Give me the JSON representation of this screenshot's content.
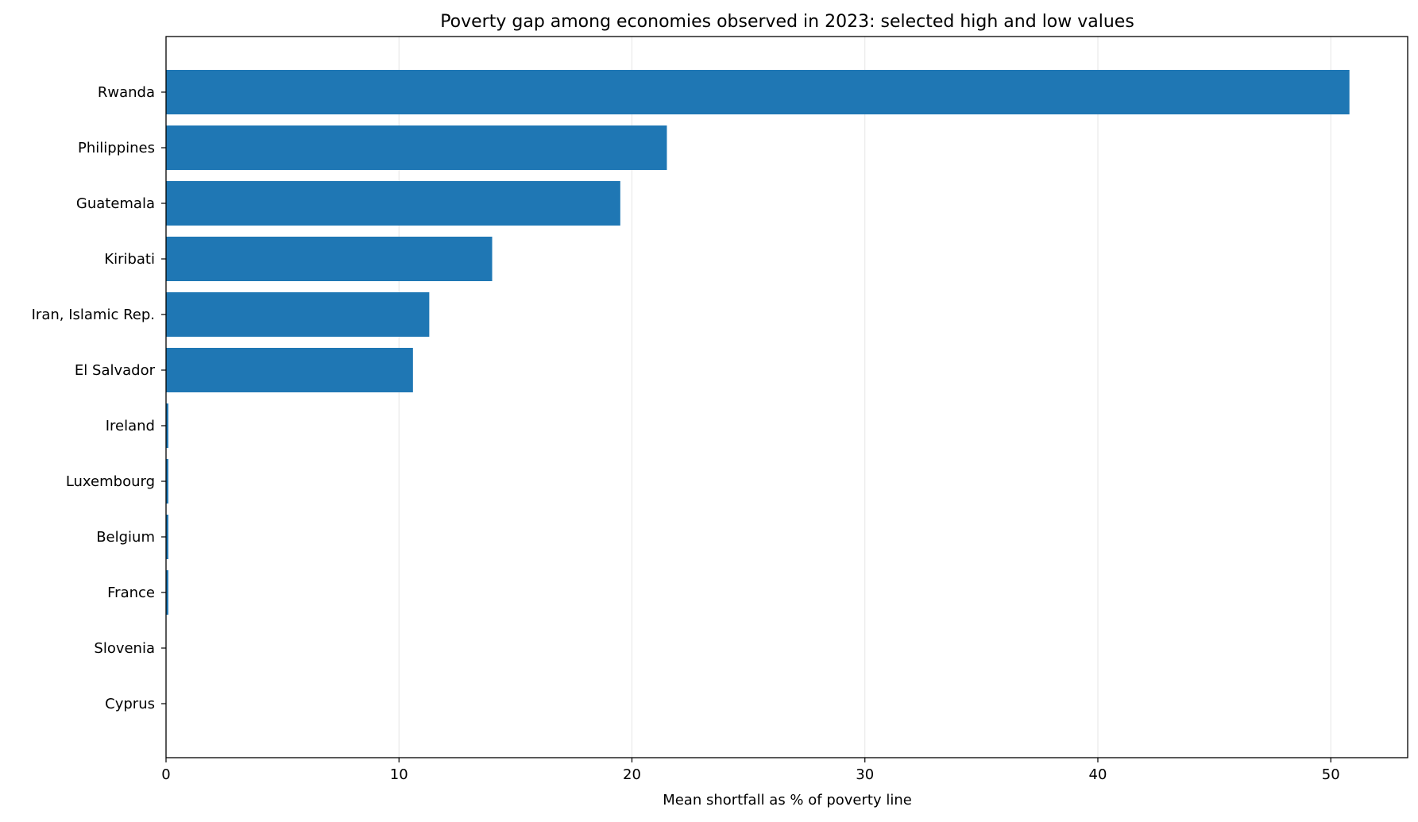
{
  "chart_data": {
    "type": "bar",
    "orientation": "horizontal",
    "title": "Poverty gap among economies observed in 2023: selected high and low values",
    "xlabel": "Mean shortfall as % of poverty line",
    "ylabel": "",
    "xlim": [
      0,
      53.3
    ],
    "xticks": [
      0,
      10,
      20,
      30,
      40,
      50
    ],
    "grid": "vertical gridlines",
    "legend": "none",
    "bar_color": "#1f77b4",
    "categories": [
      "Rwanda",
      "Philippines",
      "Guatemala",
      "Kiribati",
      "Iran, Islamic Rep.",
      "El Salvador",
      "Ireland",
      "Luxembourg",
      "Belgium",
      "France",
      "Slovenia",
      "Cyprus"
    ],
    "values": [
      50.8,
      21.5,
      19.5,
      14.0,
      11.3,
      10.6,
      0.1,
      0.1,
      0.1,
      0.1,
      0.0,
      0.0
    ]
  }
}
